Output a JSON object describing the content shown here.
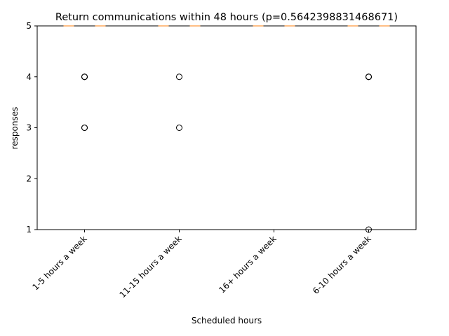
{
  "chart_data": {
    "type": "box",
    "title": "Return communications within 48 hours (p=0.5642398831468671)",
    "xlabel": "Scheduled hours",
    "ylabel": "responses",
    "categories": [
      "1-5 hours a week",
      "11-15 hours a week",
      "16+ hours a week",
      "6-10 hours a week"
    ],
    "ylim": [
      1,
      5
    ],
    "yticks": [
      1,
      2,
      3,
      4,
      5
    ],
    "boxes": [
      {
        "category": "1-5 hours a week",
        "median": 5,
        "q1": 5,
        "q3": 5,
        "whisker_low": 5,
        "whisker_high": 5,
        "outliers": [
          4,
          4,
          4,
          3,
          3
        ]
      },
      {
        "category": "11-15 hours a week",
        "median": 5,
        "q1": 5,
        "q3": 5,
        "whisker_low": 5,
        "whisker_high": 5,
        "outliers": [
          4,
          3
        ]
      },
      {
        "category": "16+ hours a week",
        "median": 5,
        "q1": 5,
        "q3": 5,
        "whisker_low": 5,
        "whisker_high": 5,
        "outliers": []
      },
      {
        "category": "6-10 hours a week",
        "median": 5,
        "q1": 5,
        "q3": 5,
        "whisker_low": 5,
        "whisker_high": 5,
        "outliers": [
          4,
          4,
          4,
          1
        ]
      }
    ],
    "grid": false,
    "legend": "none"
  }
}
